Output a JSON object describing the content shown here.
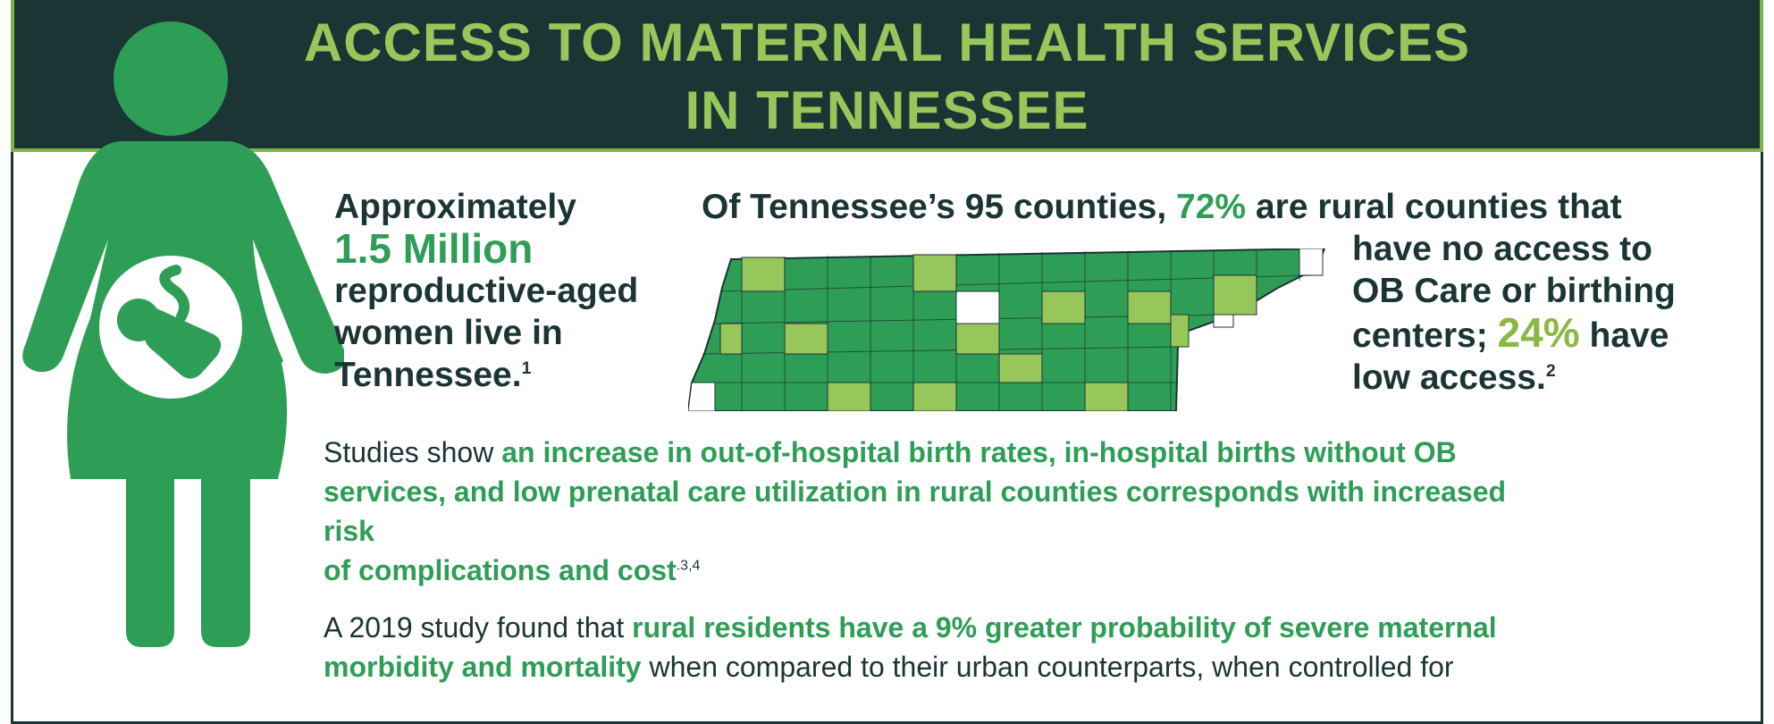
{
  "header": {
    "title_line1": "ACCESS TO MATERNAL HEALTH SERVICES",
    "title_line2": "IN TENNESSEE"
  },
  "colors": {
    "banner_bg": "#1b3434",
    "title_green": "#97c75b",
    "accent_green": "#2e9e57",
    "lime": "#8bb842",
    "text_dark": "#1b3434"
  },
  "icons": {
    "figure": "pregnant-woman-icon",
    "baby": "baby-icon",
    "map": "tennessee-county-map"
  },
  "population": {
    "line1": "Approximately",
    "value": "1.5 Million",
    "line2": "reproductive-aged",
    "line3": "women live in",
    "line4": "Tennessee.",
    "ref": "1"
  },
  "counties": {
    "lead": "Of Tennessee’s 95 counties,",
    "pct_no_access": "72%",
    "tail": "are rural counties that",
    "line2": "have no access to",
    "line3": "OB Care or birthing",
    "line4_pre": "centers;",
    "pct_low_access": "24%",
    "line4_post": "have",
    "line5": "low access.",
    "ref": "2"
  },
  "studies": {
    "prefix": "Studies show",
    "highlight_line1": "an increase in out-of-hospital birth rates, in-hospital births without OB",
    "highlight_line2": "services, and low prenatal care utilization in rural counties corresponds with increased",
    "highlight_line3": "risk",
    "highlight_line4": "of complications and cost",
    "refs": ".3,4"
  },
  "study2019": {
    "prefix": "A 2019 study found that",
    "highlight_line1": "rural residents have a 9% greater probability of severe maternal",
    "highlight_line2": "morbidity and mortality",
    "suffix": "when compared to their urban counterparts, when controlled for"
  }
}
